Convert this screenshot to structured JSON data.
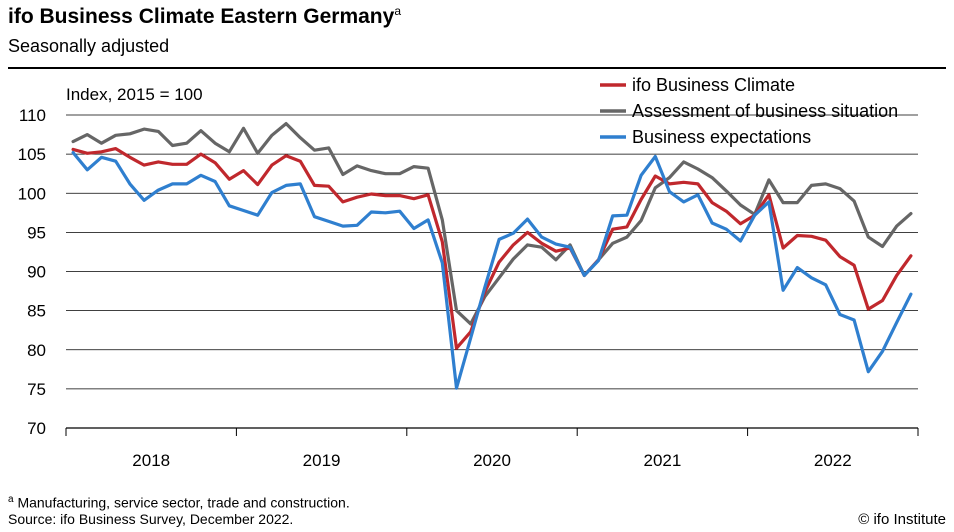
{
  "title": "ifo Business Climate Eastern Germany",
  "title_marker": "a",
  "subtitle": "Seasonally adjusted",
  "footnote_marker": "a",
  "footnote": " Manufacturing, service sector, trade and construction.",
  "source": "Source: ifo Business Survey, December 2022.",
  "copyright": "© ifo Institute",
  "colors": {
    "climate": "#c0282d",
    "situation": "#666666",
    "expectations": "#2f7fcf",
    "grid": "#000000"
  },
  "chart_data": {
    "type": "line",
    "unit_label": "Index, 2015 = 100",
    "ylim": [
      70,
      110
    ],
    "yticks": [
      70,
      75,
      80,
      85,
      90,
      95,
      100,
      105,
      110
    ],
    "x_start": "2018-01",
    "x_end": "2022-12",
    "xticks": [
      "2018",
      "2019",
      "2020",
      "2021",
      "2022"
    ],
    "grid": true,
    "legend_position": "top-right",
    "series": [
      {
        "name": "ifo Business Climate",
        "color_key": "climate",
        "values": [
          105.6,
          105.1,
          105.3,
          105.7,
          104.6,
          103.6,
          104.0,
          103.7,
          103.7,
          105.0,
          103.9,
          101.8,
          102.9,
          101.1,
          103.6,
          104.8,
          104.1,
          101.0,
          100.9,
          98.9,
          99.5,
          99.9,
          99.7,
          99.7,
          99.3,
          99.8,
          93.8,
          80.2,
          82.3,
          87.4,
          91.2,
          93.4,
          95.0,
          93.6,
          92.6,
          93.0,
          89.5,
          91.5,
          95.4,
          95.7,
          99.2,
          102.2,
          101.2,
          101.4,
          101.2,
          98.8,
          97.7,
          96.1,
          97.2,
          99.8,
          93.0,
          94.6,
          94.5,
          94.0,
          91.9,
          90.8,
          85.2,
          86.3,
          89.5,
          92.0
        ]
      },
      {
        "name": "Assessment of business situation",
        "color_key": "situation",
        "values": [
          106.6,
          107.5,
          106.4,
          107.4,
          107.6,
          108.2,
          107.9,
          106.1,
          106.4,
          108.0,
          106.4,
          105.3,
          108.3,
          105.1,
          107.4,
          108.9,
          107.1,
          105.5,
          105.8,
          102.4,
          103.5,
          102.9,
          102.5,
          102.5,
          103.4,
          103.2,
          96.6,
          85.0,
          83.3,
          86.8,
          89.2,
          91.6,
          93.4,
          93.1,
          91.5,
          93.4,
          89.5,
          91.5,
          93.6,
          94.4,
          96.5,
          100.7,
          102.0,
          104.0,
          103.1,
          102.0,
          100.3,
          98.5,
          97.3,
          101.7,
          98.8,
          98.8,
          101.0,
          101.2,
          100.6,
          99.0,
          94.4,
          93.2,
          95.8,
          97.4
        ]
      },
      {
        "name": "Business expectations",
        "color_key": "expectations",
        "values": [
          105.2,
          103.0,
          104.6,
          104.1,
          101.2,
          99.1,
          100.4,
          101.2,
          101.2,
          102.3,
          101.5,
          98.4,
          97.8,
          97.2,
          100.1,
          101.0,
          101.2,
          97.0,
          96.4,
          95.8,
          95.9,
          97.6,
          97.5,
          97.7,
          95.5,
          96.6,
          91.1,
          75.1,
          81.5,
          88.0,
          94.1,
          94.9,
          96.7,
          94.4,
          93.5,
          93.1,
          89.5,
          91.4,
          97.1,
          97.2,
          102.3,
          104.7,
          100.2,
          98.9,
          99.8,
          96.2,
          95.4,
          93.9,
          97.2,
          98.9,
          87.6,
          90.5,
          89.2,
          88.3,
          84.5,
          83.8,
          77.2,
          79.8,
          83.5,
          87.1
        ]
      }
    ]
  }
}
